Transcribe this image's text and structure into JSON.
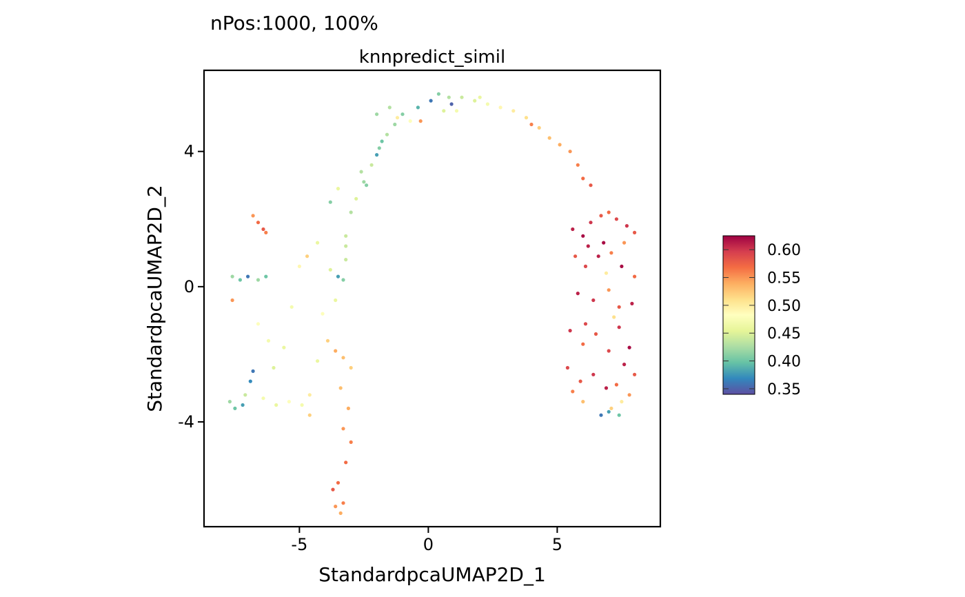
{
  "figure": {
    "supertitle": "nPos:1000, 100%"
  },
  "chart_data": {
    "type": "scatter",
    "title": "knnpredict_simil",
    "xlabel": "StandardpcaUMAP2D_1",
    "ylabel": "StandardpcaUMAP2D_2",
    "xlim": [
      -8.7,
      9.0
    ],
    "ylim": [
      -7.1,
      6.4
    ],
    "xticks": [
      {
        "value": -5,
        "label": "-5"
      },
      {
        "value": 0,
        "label": "0"
      },
      {
        "value": 5,
        "label": "5"
      }
    ],
    "yticks": [
      {
        "value": -4,
        "label": "-4"
      },
      {
        "value": 0,
        "label": "0"
      },
      {
        "value": 4,
        "label": "4"
      }
    ],
    "grid": false,
    "legend": {
      "type": "colorbar",
      "placement": "right",
      "range": [
        0.34,
        0.625
      ],
      "ticks": [
        {
          "value": 0.35,
          "label": "0.35"
        },
        {
          "value": 0.4,
          "label": "0.40"
        },
        {
          "value": 0.45,
          "label": "0.45"
        },
        {
          "value": 0.5,
          "label": "0.50"
        },
        {
          "value": 0.55,
          "label": "0.55"
        },
        {
          "value": 0.6,
          "label": "0.60"
        }
      ],
      "palette": [
        "#5e4fa2",
        "#3288bd",
        "#66c2a5",
        "#abdda4",
        "#e6f598",
        "#ffffbf",
        "#fee08b",
        "#fdae61",
        "#f46d43",
        "#d53e4f",
        "#9e0142"
      ]
    },
    "points": [
      [
        -6.8,
        2.1,
        0.55
      ],
      [
        -6.6,
        1.9,
        0.57
      ],
      [
        -6.4,
        1.7,
        0.58
      ],
      [
        -6.3,
        1.6,
        0.56
      ],
      [
        -7.6,
        0.3,
        0.42
      ],
      [
        -7.3,
        0.2,
        0.4
      ],
      [
        -7.0,
        0.3,
        0.36
      ],
      [
        -7.6,
        -0.4,
        0.55
      ],
      [
        -7.7,
        -3.4,
        0.42
      ],
      [
        -7.5,
        -3.6,
        0.4
      ],
      [
        -7.2,
        -3.5,
        0.38
      ],
      [
        -6.9,
        -2.8,
        0.37
      ],
      [
        -6.8,
        -2.5,
        0.36
      ],
      [
        -7.1,
        -3.2,
        0.44
      ],
      [
        -6.6,
        0.2,
        0.42
      ],
      [
        -6.3,
        0.3,
        0.4
      ],
      [
        -5.3,
        -0.6,
        0.47
      ],
      [
        -5.0,
        0.6,
        0.49
      ],
      [
        -4.3,
        1.3,
        0.46
      ],
      [
        -4.7,
        0.9,
        0.52
      ],
      [
        -3.8,
        0.5,
        0.45
      ],
      [
        -3.5,
        0.3,
        0.38
      ],
      [
        -3.3,
        0.2,
        0.41
      ],
      [
        -3.2,
        0.8,
        0.44
      ],
      [
        -3.9,
        -1.6,
        0.52
      ],
      [
        -3.6,
        -1.9,
        0.54
      ],
      [
        -3.3,
        -2.1,
        0.53
      ],
      [
        -3.0,
        -2.4,
        0.52
      ],
      [
        -3.4,
        -3.0,
        0.53
      ],
      [
        -3.1,
        -3.6,
        0.54
      ],
      [
        -3.3,
        -4.2,
        0.55
      ],
      [
        -3.0,
        -4.6,
        0.56
      ],
      [
        -3.2,
        -5.2,
        0.57
      ],
      [
        -3.5,
        -5.8,
        0.57
      ],
      [
        -3.7,
        -6.0,
        0.58
      ],
      [
        -3.3,
        -6.4,
        0.56
      ],
      [
        -3.6,
        -6.5,
        0.55
      ],
      [
        -3.4,
        -6.7,
        0.54
      ],
      [
        -4.6,
        -3.2,
        0.5
      ],
      [
        -4.9,
        -3.5,
        0.47
      ],
      [
        -4.6,
        -3.8,
        0.52
      ],
      [
        -5.4,
        -3.4,
        0.48
      ],
      [
        -5.9,
        -3.5,
        0.46
      ],
      [
        -6.4,
        -3.3,
        0.47
      ],
      [
        -6.6,
        -1.1,
        0.48
      ],
      [
        -6.2,
        -1.6,
        0.47
      ],
      [
        -5.6,
        -1.8,
        0.46
      ],
      [
        -6.0,
        -2.4,
        0.45
      ],
      [
        -4.3,
        -2.2,
        0.46
      ],
      [
        -4.1,
        -0.8,
        0.48
      ],
      [
        -3.6,
        -0.4,
        0.46
      ],
      [
        -3.2,
        1.5,
        0.44
      ],
      [
        -3.0,
        2.2,
        0.43
      ],
      [
        -2.8,
        2.6,
        0.45
      ],
      [
        -2.5,
        3.1,
        0.42
      ],
      [
        -2.2,
        3.6,
        0.44
      ],
      [
        -1.9,
        4.1,
        0.41
      ],
      [
        -1.6,
        4.5,
        0.43
      ],
      [
        -1.3,
        4.8,
        0.42
      ],
      [
        -2.0,
        3.9,
        0.38
      ],
      [
        -2.6,
        3.4,
        0.43
      ],
      [
        -3.5,
        2.9,
        0.46
      ],
      [
        -3.8,
        2.5,
        0.41
      ],
      [
        -3.2,
        1.2,
        0.44
      ],
      [
        -2.4,
        3.0,
        0.41
      ],
      [
        -1.8,
        4.3,
        0.4
      ],
      [
        -2.0,
        5.1,
        0.42
      ],
      [
        -1.5,
        5.3,
        0.43
      ],
      [
        -1.0,
        5.1,
        0.41
      ],
      [
        -0.4,
        5.3,
        0.39
      ],
      [
        0.1,
        5.5,
        0.36
      ],
      [
        0.4,
        5.7,
        0.41
      ],
      [
        0.8,
        5.6,
        0.43
      ],
      [
        1.3,
        5.6,
        0.44
      ],
      [
        1.8,
        5.5,
        0.45
      ],
      [
        2.3,
        5.4,
        0.47
      ],
      [
        2.8,
        5.3,
        0.49
      ],
      [
        3.3,
        5.2,
        0.5
      ],
      [
        3.8,
        5.0,
        0.51
      ],
      [
        4.3,
        4.7,
        0.52
      ],
      [
        4.7,
        4.4,
        0.53
      ],
      [
        5.1,
        4.2,
        0.54
      ],
      [
        5.5,
        4.0,
        0.55
      ],
      [
        5.8,
        3.6,
        0.56
      ],
      [
        6.0,
        3.2,
        0.57
      ],
      [
        6.3,
        3.0,
        0.58
      ],
      [
        -0.7,
        4.9,
        0.48
      ],
      [
        -1.2,
        5.0,
        0.5
      ],
      [
        0.6,
        5.2,
        0.45
      ],
      [
        1.1,
        5.2,
        0.47
      ],
      [
        -0.3,
        4.9,
        0.55
      ],
      [
        0.9,
        5.4,
        0.35
      ],
      [
        2.0,
        5.6,
        0.46
      ],
      [
        4.0,
        4.8,
        0.56
      ],
      [
        5.6,
        1.7,
        0.61
      ],
      [
        6.0,
        1.5,
        0.62
      ],
      [
        6.3,
        1.9,
        0.6
      ],
      [
        6.7,
        2.1,
        0.58
      ],
      [
        7.0,
        2.2,
        0.57
      ],
      [
        7.3,
        2.0,
        0.59
      ],
      [
        7.7,
        1.8,
        0.6
      ],
      [
        8.0,
        1.6,
        0.58
      ],
      [
        6.1,
        0.6,
        0.59
      ],
      [
        6.6,
        0.9,
        0.61
      ],
      [
        7.1,
        1.0,
        0.56
      ],
      [
        7.5,
        0.6,
        0.62
      ],
      [
        8.0,
        0.3,
        0.57
      ],
      [
        5.8,
        -0.2,
        0.61
      ],
      [
        6.4,
        -0.4,
        0.6
      ],
      [
        7.0,
        -0.1,
        0.55
      ],
      [
        7.4,
        -0.6,
        0.58
      ],
      [
        7.9,
        -0.5,
        0.61
      ],
      [
        5.5,
        -1.3,
        0.6
      ],
      [
        6.0,
        -1.7,
        0.57
      ],
      [
        6.5,
        -1.4,
        0.58
      ],
      [
        7.0,
        -1.9,
        0.59
      ],
      [
        7.4,
        -1.2,
        0.6
      ],
      [
        7.8,
        -1.8,
        0.62
      ],
      [
        5.4,
        -2.4,
        0.59
      ],
      [
        5.9,
        -2.8,
        0.58
      ],
      [
        6.4,
        -2.6,
        0.6
      ],
      [
        6.9,
        -3.0,
        0.61
      ],
      [
        7.3,
        -2.9,
        0.57
      ],
      [
        7.8,
        -3.2,
        0.55
      ],
      [
        8.0,
        -2.6,
        0.58
      ],
      [
        5.6,
        -3.1,
        0.56
      ],
      [
        6.0,
        -3.4,
        0.53
      ],
      [
        7.1,
        -3.6,
        0.52
      ],
      [
        7.5,
        -3.4,
        0.5
      ],
      [
        7.4,
        -3.8,
        0.4
      ],
      [
        6.7,
        -3.8,
        0.36
      ],
      [
        7.0,
        -3.7,
        0.38
      ],
      [
        6.8,
        1.3,
        0.62
      ],
      [
        6.2,
        1.2,
        0.61
      ],
      [
        7.6,
        1.3,
        0.55
      ],
      [
        5.7,
        0.9,
        0.58
      ],
      [
        6.9,
        0.4,
        0.5
      ],
      [
        7.2,
        -0.9,
        0.51
      ],
      [
        6.1,
        -1.1,
        0.59
      ],
      [
        7.6,
        -2.3,
        0.61
      ]
    ]
  }
}
